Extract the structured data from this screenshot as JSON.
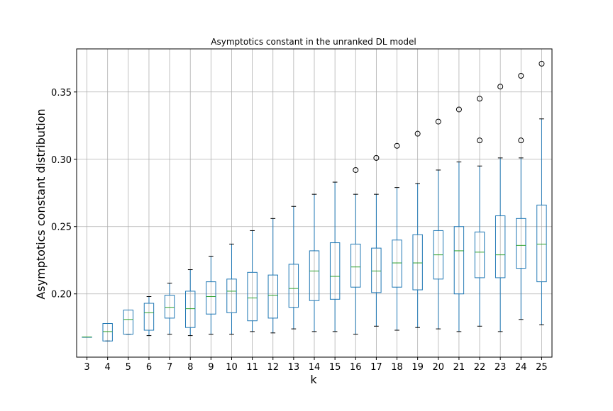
{
  "chart_data": {
    "type": "box",
    "title": "Asymptotics constant in the unranked DL model",
    "xlabel": "k",
    "ylabel": "Asymptotics constant distribution",
    "categories": [
      "3",
      "4",
      "5",
      "6",
      "7",
      "8",
      "9",
      "10",
      "11",
      "12",
      "13",
      "14",
      "15",
      "16",
      "17",
      "18",
      "19",
      "20",
      "21",
      "22",
      "23",
      "24",
      "25"
    ],
    "ylim": [
      0.153,
      0.382
    ],
    "yticks": [
      0.2,
      0.25,
      0.3,
      0.35
    ],
    "ytick_labels": [
      "0.20",
      "0.25",
      "0.30",
      "0.35"
    ],
    "grid": true,
    "boxes": [
      {
        "k": "3",
        "wlo": 0.168,
        "q1": 0.168,
        "med": 0.168,
        "q3": 0.168,
        "whi": 0.168,
        "outliers": []
      },
      {
        "k": "4",
        "wlo": 0.165,
        "q1": 0.165,
        "med": 0.172,
        "q3": 0.178,
        "whi": 0.178,
        "outliers": []
      },
      {
        "k": "5",
        "wlo": 0.17,
        "q1": 0.17,
        "med": 0.181,
        "q3": 0.188,
        "whi": 0.188,
        "outliers": []
      },
      {
        "k": "6",
        "wlo": 0.169,
        "q1": 0.173,
        "med": 0.186,
        "q3": 0.193,
        "whi": 0.198,
        "outliers": []
      },
      {
        "k": "7",
        "wlo": 0.17,
        "q1": 0.182,
        "med": 0.19,
        "q3": 0.199,
        "whi": 0.208,
        "outliers": []
      },
      {
        "k": "8",
        "wlo": 0.169,
        "q1": 0.175,
        "med": 0.189,
        "q3": 0.202,
        "whi": 0.218,
        "outliers": []
      },
      {
        "k": "9",
        "wlo": 0.17,
        "q1": 0.185,
        "med": 0.198,
        "q3": 0.209,
        "whi": 0.228,
        "outliers": []
      },
      {
        "k": "10",
        "wlo": 0.17,
        "q1": 0.186,
        "med": 0.202,
        "q3": 0.211,
        "whi": 0.237,
        "outliers": []
      },
      {
        "k": "11",
        "wlo": 0.172,
        "q1": 0.18,
        "med": 0.197,
        "q3": 0.216,
        "whi": 0.247,
        "outliers": []
      },
      {
        "k": "12",
        "wlo": 0.171,
        "q1": 0.182,
        "med": 0.199,
        "q3": 0.214,
        "whi": 0.256,
        "outliers": []
      },
      {
        "k": "13",
        "wlo": 0.174,
        "q1": 0.19,
        "med": 0.204,
        "q3": 0.222,
        "whi": 0.265,
        "outliers": []
      },
      {
        "k": "14",
        "wlo": 0.172,
        "q1": 0.195,
        "med": 0.217,
        "q3": 0.232,
        "whi": 0.274,
        "outliers": []
      },
      {
        "k": "15",
        "wlo": 0.172,
        "q1": 0.196,
        "med": 0.213,
        "q3": 0.238,
        "whi": 0.283,
        "outliers": []
      },
      {
        "k": "16",
        "wlo": 0.17,
        "q1": 0.205,
        "med": 0.22,
        "q3": 0.237,
        "whi": 0.274,
        "outliers": [
          0.292
        ]
      },
      {
        "k": "17",
        "wlo": 0.176,
        "q1": 0.201,
        "med": 0.217,
        "q3": 0.234,
        "whi": 0.274,
        "outliers": [
          0.301
        ]
      },
      {
        "k": "18",
        "wlo": 0.173,
        "q1": 0.205,
        "med": 0.223,
        "q3": 0.24,
        "whi": 0.279,
        "outliers": [
          0.31
        ]
      },
      {
        "k": "19",
        "wlo": 0.175,
        "q1": 0.203,
        "med": 0.223,
        "q3": 0.244,
        "whi": 0.282,
        "outliers": [
          0.319
        ]
      },
      {
        "k": "20",
        "wlo": 0.174,
        "q1": 0.211,
        "med": 0.229,
        "q3": 0.247,
        "whi": 0.292,
        "outliers": [
          0.328
        ]
      },
      {
        "k": "21",
        "wlo": 0.172,
        "q1": 0.2,
        "med": 0.232,
        "q3": 0.25,
        "whi": 0.298,
        "outliers": [
          0.337
        ]
      },
      {
        "k": "22",
        "wlo": 0.176,
        "q1": 0.212,
        "med": 0.231,
        "q3": 0.246,
        "whi": 0.295,
        "outliers": [
          0.314,
          0.345
        ]
      },
      {
        "k": "23",
        "wlo": 0.172,
        "q1": 0.212,
        "med": 0.229,
        "q3": 0.258,
        "whi": 0.301,
        "outliers": [
          0.354
        ]
      },
      {
        "k": "24",
        "wlo": 0.181,
        "q1": 0.219,
        "med": 0.236,
        "q3": 0.256,
        "whi": 0.301,
        "outliers": [
          0.314,
          0.362
        ]
      },
      {
        "k": "25",
        "wlo": 0.177,
        "q1": 0.209,
        "med": 0.237,
        "q3": 0.266,
        "whi": 0.33,
        "outliers": [
          0.371
        ]
      }
    ],
    "colors": {
      "box": "#1f77b4",
      "median": "#2ca02c",
      "whisker": "#000000",
      "grid": "#b0b0b0",
      "outlier": "#000000"
    }
  }
}
